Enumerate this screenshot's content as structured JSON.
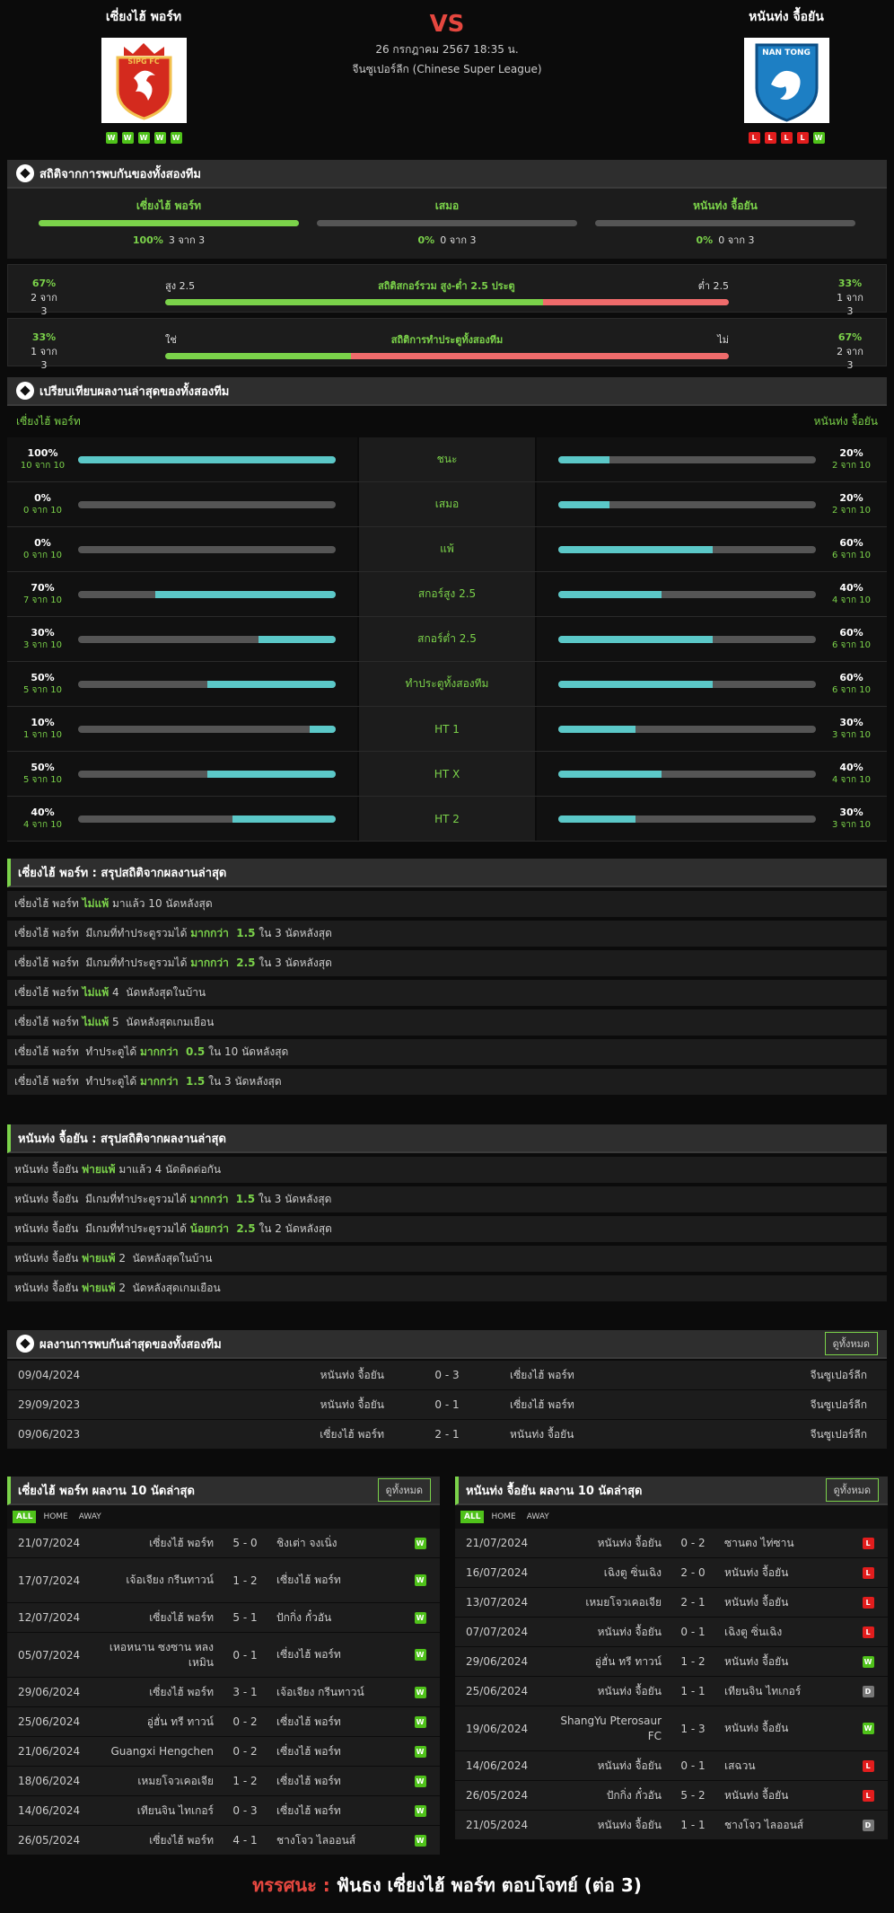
{
  "header": {
    "home": {
      "name": "เซี่ยงไฮ้ พอร์ท",
      "form": [
        "W",
        "W",
        "W",
        "W",
        "W"
      ],
      "logo_text": "SIPG FC"
    },
    "away": {
      "name": "หนันท่ง จื้อยัน",
      "form": [
        "L",
        "L",
        "L",
        "L",
        "W"
      ],
      "logo_text": "NAN TONG"
    },
    "vs": "VS",
    "date": "26 กรกฎาคม 2567 18:35 น.",
    "league": "จีนซูเปอร์ลีก (Chinese Super League)"
  },
  "h2h": {
    "title": "สถิติจากการพบกันของทั้งสองทีม",
    "cols": [
      {
        "label": "เซี่ยงไฮ้ พอร์ท",
        "pct": "100%",
        "count": "3 จาก 3",
        "fill": 1.0
      },
      {
        "label": "เสมอ",
        "pct": "0%",
        "count": "0 จาก 3",
        "fill": 0
      },
      {
        "label": "หนันท่ง จื้อยัน",
        "pct": "0%",
        "count": "0 จาก 3",
        "fill": 0
      }
    ],
    "ou": {
      "left_pct": "67%",
      "left_count": "2 จาก 3",
      "over": "สูง 2.5",
      "title": "สถิติสกอร์รวม สูง-ต่ำ 2.5 ประตู",
      "under": "ต่ำ 2.5",
      "right_pct": "33%",
      "right_count": "1 จาก 3",
      "fill": 0.67
    },
    "btts": {
      "left_pct": "33%",
      "left_count": "1 จาก 3",
      "yes": "ใช่",
      "title": "สถิติการทำประตูทั้งสองทีม",
      "no": "ไม่",
      "right_pct": "67%",
      "right_count": "2 จาก 3",
      "fill": 0.33
    }
  },
  "compare": {
    "title": "เปรียบเทียบผลงานล่าสุดของทั้งสองทีม",
    "home": "เซี่ยงไฮ้ พอร์ท",
    "away": "หนันท่ง จื้อยัน",
    "rows": [
      {
        "label": "ชนะ",
        "hp": "100%",
        "hc": "10 จาก 10",
        "hv": 1.0,
        "ap": "20%",
        "ac": "2 จาก 10",
        "av": 0.2
      },
      {
        "label": "เสมอ",
        "hp": "0%",
        "hc": "0 จาก 10",
        "hv": 0,
        "ap": "20%",
        "ac": "2 จาก 10",
        "av": 0.2
      },
      {
        "label": "แพ้",
        "hp": "0%",
        "hc": "0 จาก 10",
        "hv": 0,
        "ap": "60%",
        "ac": "6 จาก 10",
        "av": 0.6
      },
      {
        "label": "สกอร์สูง 2.5",
        "hp": "70%",
        "hc": "7 จาก 10",
        "hv": 0.7,
        "ap": "40%",
        "ac": "4 จาก 10",
        "av": 0.4
      },
      {
        "label": "สกอร์ต่ำ 2.5",
        "hp": "30%",
        "hc": "3 จาก 10",
        "hv": 0.3,
        "ap": "60%",
        "ac": "6 จาก 10",
        "av": 0.6
      },
      {
        "label": "ทำประตูทั้งสองทีม",
        "hp": "50%",
        "hc": "5 จาก 10",
        "hv": 0.5,
        "ap": "60%",
        "ac": "6 จาก 10",
        "av": 0.6
      },
      {
        "label": "HT 1",
        "hp": "10%",
        "hc": "1 จาก 10",
        "hv": 0.1,
        "ap": "30%",
        "ac": "3 จาก 10",
        "av": 0.3
      },
      {
        "label": "HT X",
        "hp": "50%",
        "hc": "5 จาก 10",
        "hv": 0.5,
        "ap": "40%",
        "ac": "4 จาก 10",
        "av": 0.4
      },
      {
        "label": "HT 2",
        "hp": "40%",
        "hc": "4 จาก 10",
        "hv": 0.4,
        "ap": "30%",
        "ac": "3 จาก 10",
        "av": 0.3
      }
    ]
  },
  "home_summary": {
    "title": "เซี่ยงไฮ้ พอร์ท : สรุปสถิติจากผลงานล่าสุด",
    "rows": [
      [
        "เซี่ยงไฮ้ พอร์ท ",
        "ไม่แพ้",
        " มาแล้ว 10 นัดหลังสุด"
      ],
      [
        "เซี่ยงไฮ้ พอร์ท  มีเกมที่ทำประตูรวมได้ ",
        "มากกว่า  1.5",
        " ใน 3 นัดหลังสุด"
      ],
      [
        "เซี่ยงไฮ้ พอร์ท  มีเกมที่ทำประตูรวมได้ ",
        "มากกว่า  2.5",
        " ใน 3 นัดหลังสุด"
      ],
      [
        "เซี่ยงไฮ้ พอร์ท ",
        "ไม่แพ้",
        " 4  นัดหลังสุดในบ้าน"
      ],
      [
        "เซี่ยงไฮ้ พอร์ท ",
        "ไม่แพ้",
        " 5  นัดหลังสุดเกมเยือน"
      ],
      [
        "เซี่ยงไฮ้ พอร์ท  ทำประตูได้ ",
        "มากกว่า  0.5",
        " ใน 10 นัดหลังสุด"
      ],
      [
        "เซี่ยงไฮ้ พอร์ท  ทำประตูได้ ",
        "มากกว่า  1.5",
        " ใน 3 นัดหลังสุด"
      ]
    ]
  },
  "away_summary": {
    "title": "หนันท่ง จื้อยัน : สรุปสถิติจากผลงานล่าสุด",
    "rows": [
      [
        "หนันท่ง จื้อยัน ",
        "พ่ายแพ้",
        " มาแล้ว 4 นัดติดต่อกัน"
      ],
      [
        "หนันท่ง จื้อยัน  มีเกมที่ทำประตูรวมได้ ",
        "มากกว่า  1.5",
        " ใน 3 นัดหลังสุด"
      ],
      [
        "หนันท่ง จื้อยัน  มีเกมที่ทำประตูรวมได้ ",
        "น้อยกว่า  2.5",
        " ใน 2 นัดหลังสุด"
      ],
      [
        "หนันท่ง จื้อยัน ",
        "พ่ายแพ้",
        " 2  นัดหลังสุดในบ้าน"
      ],
      [
        "หนันท่ง จื้อยัน ",
        "พ่ายแพ้",
        " 2  นัดหลังสุดเกมเยือน"
      ]
    ]
  },
  "h2h_matches": {
    "title": "ผลงานการพบกันล่าสุดของทั้งสองทีม",
    "all": "ดูทั้งหมด",
    "rows": [
      {
        "date": "09/04/2024",
        "home": "หนันท่ง จื้อยัน",
        "score": "0 - 3",
        "away": "เซี่ยงไฮ้ พอร์ท",
        "league": "จีนซูเปอร์ลีก"
      },
      {
        "date": "29/09/2023",
        "home": "หนันท่ง จื้อยัน",
        "score": "0 - 1",
        "away": "เซี่ยงไฮ้ พอร์ท",
        "league": "จีนซูเปอร์ลีก"
      },
      {
        "date": "09/06/2023",
        "home": "เซี่ยงไฮ้ พอร์ท",
        "score": "2 - 1",
        "away": "หนันท่ง จื้อยัน",
        "league": "จีนซูเปอร์ลีก"
      }
    ]
  },
  "tabs": [
    "ALL",
    "HOME",
    "AWAY"
  ],
  "home_last": {
    "title": "เซี่ยงไฮ้ พอร์ท ผลงาน 10 นัดล่าสุด",
    "all": "ดูทั้งหมด",
    "rows": [
      {
        "date": "21/07/2024",
        "home": "เซี่ยงไฮ้ พอร์ท",
        "score": "5 - 0",
        "away": "ชิงเต่า จงเนิ่ง",
        "res": "W"
      },
      {
        "date": "17/07/2024",
        "home": "เจ้อเจียง กรีนทาวน์",
        "score": "1 - 2",
        "away": "เซี่ยงไฮ้ พอร์ท",
        "res": "W"
      },
      {
        "date": "12/07/2024",
        "home": "เซี่ยงไฮ้ พอร์ท",
        "score": "5 - 1",
        "away": "ปักกิ่ง กั๋วอัน",
        "res": "W"
      },
      {
        "date": "05/07/2024",
        "home": "เหอหนาน ซงซาน หลงเหมิน",
        "score": "0 - 1",
        "away": "เซี่ยงไฮ้ พอร์ท",
        "res": "W"
      },
      {
        "date": "29/06/2024",
        "home": "เซี่ยงไฮ้ พอร์ท",
        "score": "3 - 1",
        "away": "เจ้อเจียง กรีนทาวน์",
        "res": "W"
      },
      {
        "date": "25/06/2024",
        "home": "อู่ฮั่น ทรี ทาวน์",
        "score": "0 - 2",
        "away": "เซี่ยงไฮ้ พอร์ท",
        "res": "W"
      },
      {
        "date": "21/06/2024",
        "home": "Guangxi Hengchen",
        "score": "0 - 2",
        "away": "เซี่ยงไฮ้ พอร์ท",
        "res": "W"
      },
      {
        "date": "18/06/2024",
        "home": "เหมยโจวเคอเจีย",
        "score": "1 - 2",
        "away": "เซี่ยงไฮ้ พอร์ท",
        "res": "W"
      },
      {
        "date": "14/06/2024",
        "home": "เทียนจิน ไทเกอร์",
        "score": "0 - 3",
        "away": "เซี่ยงไฮ้ พอร์ท",
        "res": "W"
      },
      {
        "date": "26/05/2024",
        "home": "เซี่ยงไฮ้ พอร์ท",
        "score": "4 - 1",
        "away": "ชางโจว ไลออนส์",
        "res": "W"
      }
    ]
  },
  "away_last": {
    "title": "หนันท่ง จื้อยัน ผลงาน 10 นัดล่าสุด",
    "all": "ดูทั้งหมด",
    "rows": [
      {
        "date": "21/07/2024",
        "home": "หนันท่ง จื้อยัน",
        "score": "0 - 2",
        "away": "ซานตง ไท่ซาน",
        "res": "L"
      },
      {
        "date": "16/07/2024",
        "home": "เฉิงตู ซิ่นเฉิง",
        "score": "2 - 0",
        "away": "หนันท่ง จื้อยัน",
        "res": "L"
      },
      {
        "date": "13/07/2024",
        "home": "เหมยโจวเคอเจีย",
        "score": "2 - 1",
        "away": "หนันท่ง จื้อยัน",
        "res": "L"
      },
      {
        "date": "07/07/2024",
        "home": "หนันท่ง จื้อยัน",
        "score": "0 - 1",
        "away": "เฉิงตู ซิ่นเฉิง",
        "res": "L"
      },
      {
        "date": "29/06/2024",
        "home": "อู่ฮั่น ทรี ทาวน์",
        "score": "1 - 2",
        "away": "หนันท่ง จื้อยัน",
        "res": "W"
      },
      {
        "date": "25/06/2024",
        "home": "หนันท่ง จื้อยัน",
        "score": "1 - 1",
        "away": "เทียนจิน ไทเกอร์",
        "res": "D"
      },
      {
        "date": "19/06/2024",
        "home": "ShangYu Pterosaur FC",
        "score": "1 - 3",
        "away": "หนันท่ง จื้อยัน",
        "res": "W"
      },
      {
        "date": "14/06/2024",
        "home": "หนันท่ง จื้อยัน",
        "score": "0 - 1",
        "away": "เสฉวน",
        "res": "L"
      },
      {
        "date": "26/05/2024",
        "home": "ปักกิ่ง กั๋วอัน",
        "score": "5 - 2",
        "away": "หนันท่ง จื้อยัน",
        "res": "L"
      },
      {
        "date": "21/05/2024",
        "home": "หนันท่ง จื้อยัน",
        "score": "1 - 1",
        "away": "ชางโจว ไลออนส์",
        "res": "D"
      }
    ]
  },
  "footer": {
    "label": "ทรรศนะ :",
    "text": " ฟันธง เซี่ยงไฮ้ พอร์ท ตอบโจทย์ (ต่อ 3)"
  },
  "colors": {
    "accent": "#7bd24a",
    "teal": "#5bc8c8",
    "red": "#e5473f",
    "win": "#4fc21a",
    "loss": "#e21d1d",
    "draw": "#777777"
  }
}
